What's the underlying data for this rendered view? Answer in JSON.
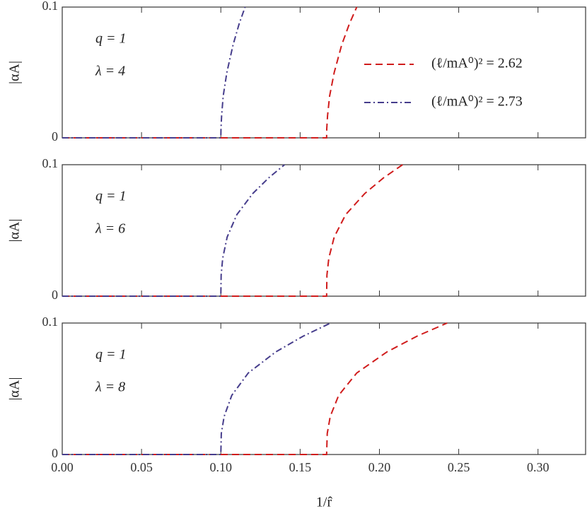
{
  "chart_data": [
    {
      "type": "line",
      "annotations": [
        "q = 1",
        "λ = 4"
      ],
      "ylabel": "|αA|",
      "xlim": [
        0,
        0.33
      ],
      "ylim": [
        0,
        0.1
      ],
      "yticks": [
        0,
        0.1
      ],
      "legend": "right",
      "series": [
        {
          "name": "(ℓ/mA⁰)² = 2.62",
          "color": "#d01c1c",
          "dash": "dashed",
          "x": [
            0,
            0.1667,
            0.1668,
            0.1673,
            0.1686,
            0.1715,
            0.1762,
            0.181,
            0.1857
          ],
          "values": [
            0,
            0,
            0.007,
            0.017,
            0.032,
            0.05,
            0.071,
            0.087,
            0.1
          ]
        },
        {
          "name": "(ℓ/mA⁰)² = 2.73",
          "color": "#463d8c",
          "dash": "dashdot",
          "x": [
            0,
            0.1,
            0.1001,
            0.1005,
            0.1015,
            0.1038,
            0.1077,
            0.1115,
            0.1153
          ],
          "values": [
            0,
            0,
            0.007,
            0.017,
            0.032,
            0.05,
            0.071,
            0.087,
            0.1
          ]
        }
      ]
    },
    {
      "type": "line",
      "annotations": [
        "q = 1",
        "λ = 6"
      ],
      "ylabel": "|αA|",
      "xlim": [
        0,
        0.33
      ],
      "ylim": [
        0,
        0.1
      ],
      "yticks": [
        0,
        0.1
      ],
      "series": [
        {
          "color": "#d01c1c",
          "dash": "dashed",
          "x": [
            0,
            0.1667,
            0.1669,
            0.1681,
            0.1715,
            0.1787,
            0.1907,
            0.2026,
            0.2146
          ],
          "values": [
            0,
            0,
            0.016,
            0.029,
            0.045,
            0.062,
            0.078,
            0.09,
            0.1
          ]
        },
        {
          "color": "#463d8c",
          "dash": "dashdot",
          "x": [
            0,
            0.1,
            0.1002,
            0.1012,
            0.104,
            0.1101,
            0.1201,
            0.1302,
            0.1402
          ],
          "values": [
            0,
            0,
            0.016,
            0.029,
            0.045,
            0.062,
            0.078,
            0.09,
            0.1
          ]
        }
      ]
    },
    {
      "type": "line",
      "annotations": [
        "q = 1",
        "λ = 8"
      ],
      "ylabel": "|αA|",
      "xlabel": "1/r̂",
      "xlim": [
        0,
        0.33
      ],
      "ylim": [
        0,
        0.1
      ],
      "yticks": [
        0,
        0.1
      ],
      "xticks": [
        {
          "value": 0,
          "label": "0.00"
        },
        {
          "value": 0.05,
          "label": "0.05"
        },
        {
          "value": 0.1,
          "label": "0.10"
        },
        {
          "value": 0.15,
          "label": "0.15"
        },
        {
          "value": 0.2,
          "label": "0.20"
        },
        {
          "value": 0.25,
          "label": "0.25"
        },
        {
          "value": 0.3,
          "label": "0.30"
        }
      ],
      "series": [
        {
          "color": "#d01c1c",
          "dash": "dashed",
          "x": [
            0,
            0.1667,
            0.1671,
            0.169,
            0.1743,
            0.1857,
            0.2047,
            0.2237,
            0.2427
          ],
          "values": [
            0,
            0,
            0.016,
            0.029,
            0.045,
            0.062,
            0.078,
            0.09,
            0.1
          ]
        },
        {
          "color": "#463d8c",
          "dash": "dashdot",
          "x": [
            0,
            0.1,
            0.1003,
            0.1021,
            0.1069,
            0.1173,
            0.1346,
            0.1519,
            0.1692
          ],
          "values": [
            0,
            0,
            0.016,
            0.029,
            0.045,
            0.062,
            0.078,
            0.09,
            0.1
          ]
        }
      ]
    }
  ]
}
